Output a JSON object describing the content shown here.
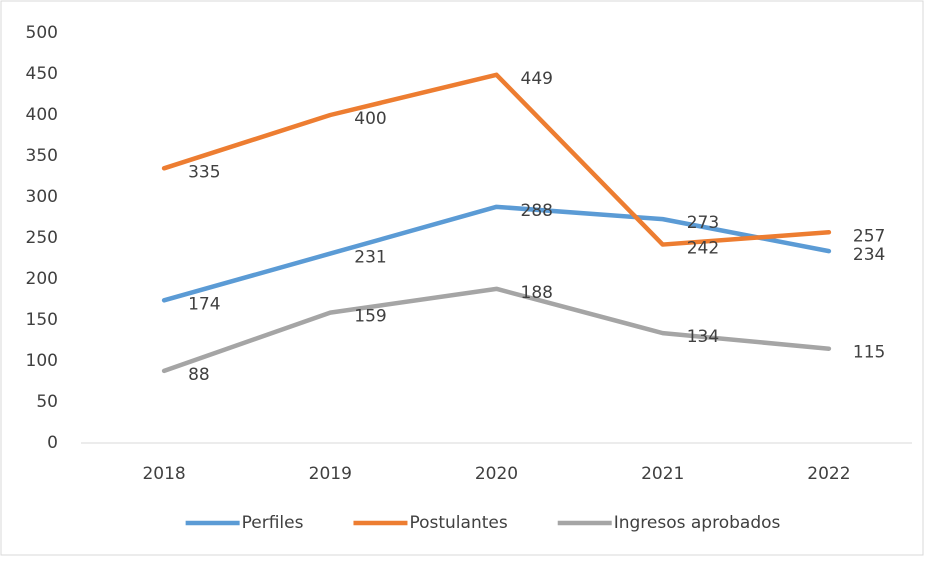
{
  "chart_data": {
    "type": "line",
    "categories": [
      "2018",
      "2019",
      "2020",
      "2021",
      "2022"
    ],
    "series": [
      {
        "name": "Perfiles",
        "color": "#5b9bd5",
        "values": [
          174,
          231,
          288,
          273,
          234
        ]
      },
      {
        "name": "Postulantes",
        "color": "#ed7d31",
        "values": [
          335,
          400,
          449,
          242,
          257
        ]
      },
      {
        "name": "Ingresos aprobados",
        "color": "#a5a5a5",
        "values": [
          88,
          159,
          188,
          134,
          115
        ]
      }
    ],
    "ylim": [
      0,
      500
    ],
    "yticks": [
      0,
      50,
      100,
      150,
      200,
      250,
      300,
      350,
      400,
      450,
      500
    ],
    "grid": false,
    "legend": "bottom",
    "data_labels": true
  }
}
